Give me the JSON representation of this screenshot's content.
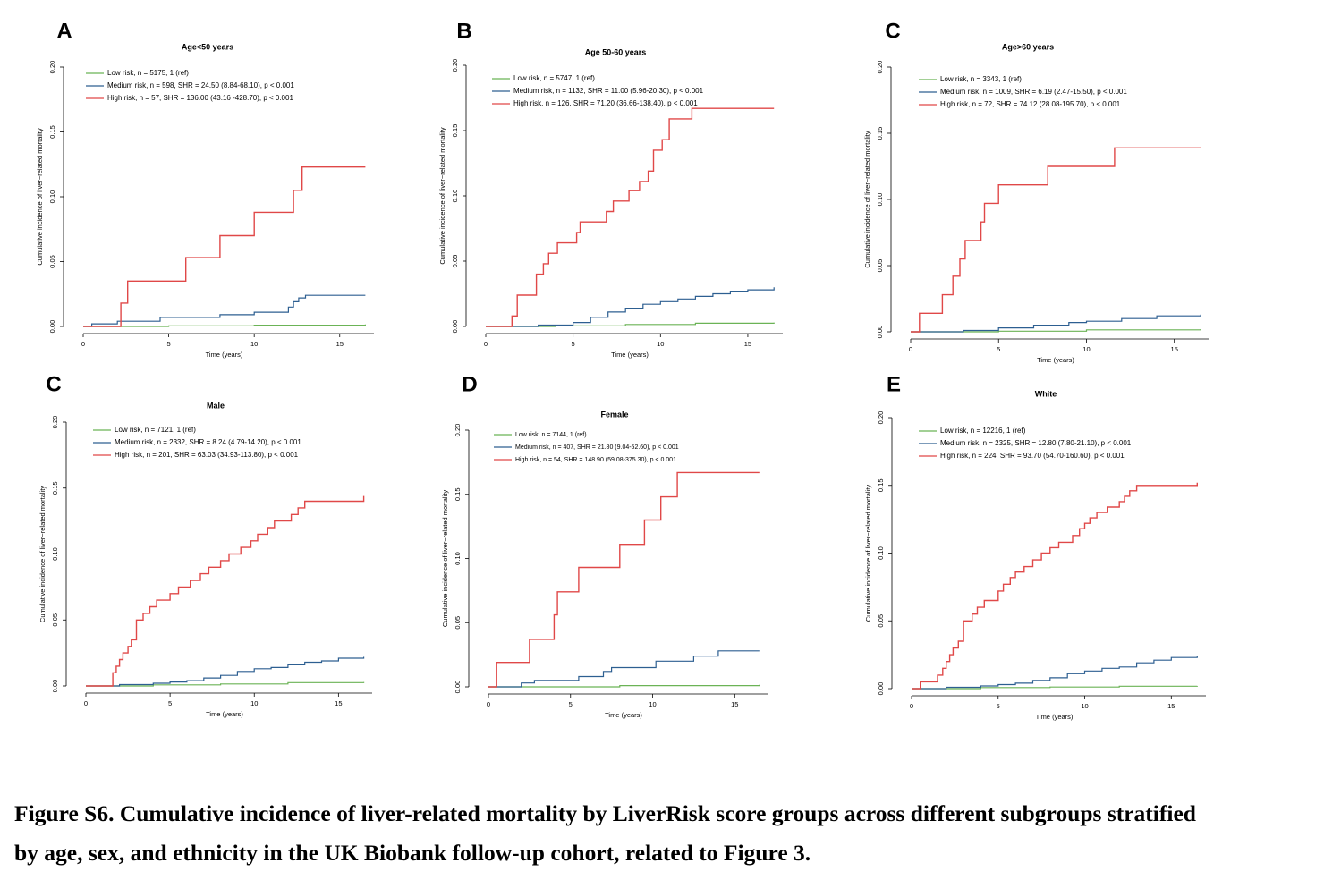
{
  "caption": {
    "line1": "Figure S6. Cumulative incidence of liver-related mortality by LiverRisk score groups across different subgroups stratified",
    "line2": "by age, sex, and ethnicity in the UK Biobank follow-up cohort, related to Figure 3."
  },
  "colors": {
    "low": "#6bb356",
    "medium": "#2d5f91",
    "high": "#e04848"
  },
  "chart_data": [
    {
      "panel": "A",
      "type": "line",
      "title": "Age<50 years",
      "xlabel": "Time (years)",
      "ylabel": "Cumulative incidence of liver−related mortality",
      "xlim": [
        0,
        17
      ],
      "ylim": [
        0,
        0.2
      ],
      "x_ticks": [
        "0",
        "5",
        "10",
        "15"
      ],
      "y_ticks": [
        "0.00",
        "0.05",
        "0.10",
        "0.15",
        "0.20"
      ],
      "legend": "top-left",
      "series": [
        {
          "name": "Low risk, n = 5175, 1 (ref)",
          "risk": "low",
          "x": [
            0,
            5,
            10,
            16.5
          ],
          "y": [
            0,
            0.0005,
            0.001,
            0.0015
          ]
        },
        {
          "name": "Medium risk, n = 598, SHR = 24.50 (8.84-68.10), p < 0.001",
          "risk": "medium",
          "x": [
            0,
            0.5,
            2,
            4.5,
            8,
            10,
            12,
            12.3,
            12.6,
            13,
            16.5
          ],
          "y": [
            0,
            0.002,
            0.004,
            0.007,
            0.009,
            0.011,
            0.015,
            0.019,
            0.022,
            0.024,
            0.024
          ]
        },
        {
          "name": "High risk, n = 57, SHR = 136.00 (43.16 -428.70), p < 0.001",
          "risk": "high",
          "x": [
            0,
            2.2,
            2.6,
            6,
            8,
            10,
            12.3,
            12.8,
            16.5
          ],
          "y": [
            0,
            0.018,
            0.035,
            0.053,
            0.07,
            0.088,
            0.105,
            0.123,
            0.123
          ]
        }
      ]
    },
    {
      "panel": "B",
      "type": "line",
      "title": "Age 50-60 years",
      "xlabel": "Time (years)",
      "ylabel": "Cumulative incidence of liver−related mortality",
      "xlim": [
        0,
        17
      ],
      "ylim": [
        0,
        0.2
      ],
      "x_ticks": [
        "0",
        "5",
        "10",
        "15"
      ],
      "y_ticks": [
        "0.00",
        "0.05",
        "0.10",
        "0.15",
        "0.20"
      ],
      "legend": "top-left",
      "series": [
        {
          "name": "Low risk, n = 5747, 1 (ref)",
          "risk": "low",
          "x": [
            0,
            4,
            8,
            12,
            16.5
          ],
          "y": [
            0,
            0.0005,
            0.0015,
            0.0025,
            0.003
          ]
        },
        {
          "name": "Medium risk, n = 1132, SHR = 11.00 (5.96-20.30), p < 0.001",
          "risk": "medium",
          "x": [
            0,
            3,
            5,
            6,
            7,
            8,
            9,
            10,
            11,
            12,
            13,
            14,
            15,
            16.5
          ],
          "y": [
            0,
            0.001,
            0.003,
            0.007,
            0.011,
            0.014,
            0.017,
            0.019,
            0.021,
            0.023,
            0.025,
            0.027,
            0.028,
            0.03
          ]
        },
        {
          "name": "High risk, n = 126, SHR = 71.20 (36.66-138.40), p < 0.001",
          "risk": "high",
          "x": [
            0,
            1.5,
            1.8,
            2.9,
            3.3,
            3.6,
            4.1,
            5.2,
            5.4,
            6.9,
            7.3,
            8.2,
            8.8,
            9.3,
            9.6,
            10.1,
            10.5,
            11.8,
            12.6,
            16.5
          ],
          "y": [
            0,
            0.008,
            0.024,
            0.04,
            0.048,
            0.056,
            0.064,
            0.072,
            0.08,
            0.088,
            0.096,
            0.104,
            0.111,
            0.119,
            0.135,
            0.143,
            0.159,
            0.167,
            0.167,
            0.167
          ]
        }
      ]
    },
    {
      "panel": "C",
      "type": "line",
      "title": "Age>60 years",
      "xlabel": "Time (years)",
      "ylabel": "Cumulative incidence of liver−related mortality",
      "xlim": [
        0,
        17
      ],
      "ylim": [
        0,
        0.2
      ],
      "x_ticks": [
        "0",
        "5",
        "10",
        "15"
      ],
      "y_ticks": [
        "0.00",
        "0.05",
        "0.10",
        "0.15",
        "0.20"
      ],
      "legend": "top-left",
      "series": [
        {
          "name": "Low risk, n = 3343, 1 (ref)",
          "risk": "low",
          "x": [
            0,
            5,
            10,
            16.5
          ],
          "y": [
            0,
            0.0005,
            0.0015,
            0.002
          ]
        },
        {
          "name": "Medium risk, n = 1009, SHR = 6.19 (2.47-15.50), p < 0.001",
          "risk": "medium",
          "x": [
            0,
            3,
            5,
            7,
            9,
            10,
            12,
            14,
            16.5
          ],
          "y": [
            0,
            0.001,
            0.003,
            0.005,
            0.007,
            0.008,
            0.01,
            0.012,
            0.013
          ]
        },
        {
          "name": "High risk, n = 72, SHR = 74.12 (28.08-195.70), p < 0.001",
          "risk": "high",
          "x": [
            0,
            0.5,
            1.8,
            2.4,
            2.8,
            3.1,
            4,
            4.2,
            5,
            7.8,
            11.6,
            16.5
          ],
          "y": [
            0,
            0.014,
            0.028,
            0.042,
            0.055,
            0.069,
            0.083,
            0.097,
            0.111,
            0.125,
            0.139,
            0.139
          ]
        }
      ]
    },
    {
      "panel": "C",
      "type": "line",
      "title": "Male",
      "xlabel": "Time (years)",
      "ylabel": "Cumulative incidence of liver−related mortality",
      "xlim": [
        0,
        17
      ],
      "ylim": [
        0,
        0.2
      ],
      "x_ticks": [
        "0",
        "5",
        "10",
        "15"
      ],
      "y_ticks": [
        "0.00",
        "0.05",
        "0.10",
        "0.15",
        "0.20"
      ],
      "legend": "top-left",
      "series": [
        {
          "name": "Low risk, n = 7121, 1 (ref)",
          "risk": "low",
          "x": [
            0,
            4,
            8,
            12,
            16.5
          ],
          "y": [
            0,
            0.0008,
            0.0015,
            0.0025,
            0.003
          ]
        },
        {
          "name": "Medium risk, n = 2332, SHR = 8.24 (4.79-14.20), p < 0.001",
          "risk": "medium",
          "x": [
            0,
            2,
            4,
            5,
            6,
            7,
            8,
            9,
            10,
            11,
            12,
            13,
            14,
            15,
            16.5
          ],
          "y": [
            0,
            0.001,
            0.002,
            0.003,
            0.004,
            0.006,
            0.008,
            0.011,
            0.013,
            0.014,
            0.016,
            0.018,
            0.019,
            0.021,
            0.022
          ]
        },
        {
          "name": "High risk, n = 201, SHR = 63.03 (34.93-113.80), p < 0.001",
          "risk": "high",
          "x": [
            0,
            1.6,
            1.8,
            2,
            2.2,
            2.5,
            2.7,
            3,
            3.4,
            3.8,
            4.2,
            5,
            5.5,
            6.2,
            6.8,
            7.3,
            8,
            8.5,
            9.2,
            9.8,
            10.2,
            10.8,
            11.2,
            12.2,
            12.6,
            13,
            16.5
          ],
          "y": [
            0,
            0.01,
            0.015,
            0.02,
            0.025,
            0.03,
            0.035,
            0.05,
            0.055,
            0.06,
            0.065,
            0.07,
            0.075,
            0.08,
            0.085,
            0.09,
            0.095,
            0.1,
            0.105,
            0.11,
            0.115,
            0.12,
            0.125,
            0.13,
            0.135,
            0.14,
            0.144
          ]
        }
      ]
    },
    {
      "panel": "D",
      "type": "line",
      "title": "Female",
      "xlabel": "Time (years)",
      "ylabel": "Cumulative incidence of liver−related mortality",
      "xlim": [
        0,
        17
      ],
      "ylim": [
        0,
        0.2
      ],
      "x_ticks": [
        "0",
        "5",
        "10",
        "15"
      ],
      "y_ticks": [
        "0.00",
        "0.05",
        "0.10",
        "0.15",
        "0.20"
      ],
      "legend": "top-left",
      "series": [
        {
          "name": "Low risk, n = 7144, 1 (ref)",
          "risk": "low",
          "x": [
            0,
            8,
            16.5
          ],
          "y": [
            0,
            0.001,
            0.0015
          ]
        },
        {
          "name": "Medium risk, n = 407, SHR = 21.80 (9.04-52.60), p < 0.001",
          "risk": "medium",
          "x": [
            0,
            2,
            2.8,
            5.5,
            7,
            7.5,
            10.2,
            12.5,
            14,
            16.5
          ],
          "y": [
            0,
            0.003,
            0.005,
            0.008,
            0.012,
            0.015,
            0.02,
            0.024,
            0.028,
            0.028
          ]
        },
        {
          "name": "High risk, n = 54, SHR = 148.90 (59.08-375.30), p < 0.001",
          "risk": "high",
          "x": [
            0,
            0.5,
            2.5,
            4,
            4.2,
            5.5,
            8,
            9.5,
            10.5,
            11.5,
            16.5
          ],
          "y": [
            0,
            0.019,
            0.037,
            0.056,
            0.074,
            0.093,
            0.111,
            0.13,
            0.148,
            0.167,
            0.167
          ]
        }
      ]
    },
    {
      "panel": "E",
      "type": "line",
      "title": "White",
      "xlabel": "Time (years)",
      "ylabel": "Cumulative incidence of liver−related mortality",
      "xlim": [
        0,
        17
      ],
      "ylim": [
        0,
        0.2
      ],
      "x_ticks": [
        "0",
        "5",
        "10",
        "15"
      ],
      "y_ticks": [
        "0.00",
        "0.05",
        "0.10",
        "0.15",
        "0.20"
      ],
      "legend": "top-left",
      "series": [
        {
          "name": "Low risk, n = 12216, 1 (ref)",
          "risk": "low",
          "x": [
            0,
            4,
            8,
            12,
            16.5
          ],
          "y": [
            0,
            0.0008,
            0.0012,
            0.0018,
            0.002
          ]
        },
        {
          "name": "Medium risk, n = 2325, SHR = 12.80 (7.80-21.10), p < 0.001",
          "risk": "medium",
          "x": [
            0,
            2,
            4,
            5,
            6,
            7,
            8,
            9,
            10,
            11,
            12,
            13,
            14,
            15,
            16.5
          ],
          "y": [
            0,
            0.001,
            0.002,
            0.003,
            0.004,
            0.006,
            0.008,
            0.011,
            0.013,
            0.015,
            0.016,
            0.019,
            0.021,
            0.023,
            0.024
          ]
        },
        {
          "name": "High risk, n = 224, SHR = 93.70 (54.70-160.60), p < 0.001",
          "risk": "high",
          "x": [
            0,
            0.5,
            1.5,
            1.8,
            2,
            2.2,
            2.4,
            2.7,
            3,
            3.5,
            3.8,
            4.2,
            5,
            5.3,
            5.7,
            6,
            6.5,
            7,
            7.5,
            8,
            8.5,
            9.3,
            9.7,
            10,
            10.3,
            10.7,
            11.3,
            12,
            12.3,
            12.6,
            13,
            16.5
          ],
          "y": [
            0,
            0.005,
            0.01,
            0.015,
            0.02,
            0.025,
            0.03,
            0.035,
            0.05,
            0.055,
            0.06,
            0.065,
            0.072,
            0.077,
            0.082,
            0.086,
            0.09,
            0.095,
            0.1,
            0.104,
            0.108,
            0.113,
            0.118,
            0.122,
            0.126,
            0.13,
            0.134,
            0.138,
            0.142,
            0.146,
            0.15,
            0.152
          ]
        }
      ]
    }
  ]
}
